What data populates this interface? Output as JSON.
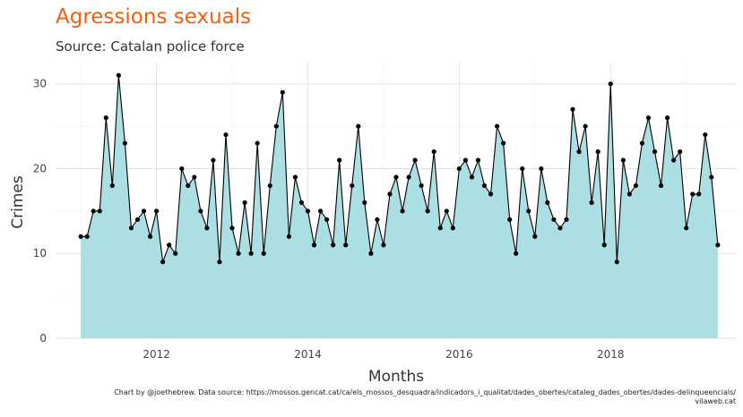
{
  "chart_data": {
    "type": "area",
    "title": "Agressions sexuals",
    "subtitle": "Source: Catalan police force",
    "xlabel": "Months",
    "ylabel": "Crimes",
    "caption": "Chart by @joethebrew. Data source: https://mossos.gencat.cat/ca/els_mossos_desquadra/indicadors_i_qualitat/dades_obertes/cataleg_dades_obertes/dades-delinqueencials/ vilaweb.cat",
    "x_start": "2011-01",
    "x_frequency": "monthly",
    "xlim": [
      "2010-09",
      "2019-09"
    ],
    "ylim": [
      0,
      32.5
    ],
    "x_ticks": [
      "2012",
      "2014",
      "2016",
      "2018"
    ],
    "y_ticks": [
      0,
      10,
      20,
      30
    ],
    "grid": true,
    "colors": {
      "fill": "#a8dde3",
      "line": "#000000",
      "point": "#000000",
      "title": "#f25f0c"
    },
    "series": [
      {
        "values": [
          12,
          12,
          15,
          15,
          26,
          18,
          31,
          23,
          13,
          14,
          15,
          12,
          15,
          9,
          11,
          10,
          20,
          18,
          19,
          15,
          13,
          21,
          9,
          24,
          13,
          10,
          16,
          10,
          23,
          10,
          18,
          25,
          29,
          12,
          19,
          16,
          15,
          11,
          15,
          14,
          11,
          21,
          11,
          18,
          25,
          16,
          10,
          14,
          11,
          17,
          19,
          15,
          19,
          21,
          18,
          15,
          22,
          13,
          15,
          13,
          20,
          21,
          19,
          21,
          18,
          17,
          25,
          23,
          14,
          10,
          20,
          15,
          12,
          20,
          16,
          14,
          13,
          14,
          27,
          22,
          25,
          16,
          22,
          11,
          30,
          9,
          21,
          17,
          18,
          23,
          26,
          22,
          18,
          26,
          21,
          22,
          13,
          17,
          17,
          24,
          19,
          11
        ]
      }
    ]
  }
}
